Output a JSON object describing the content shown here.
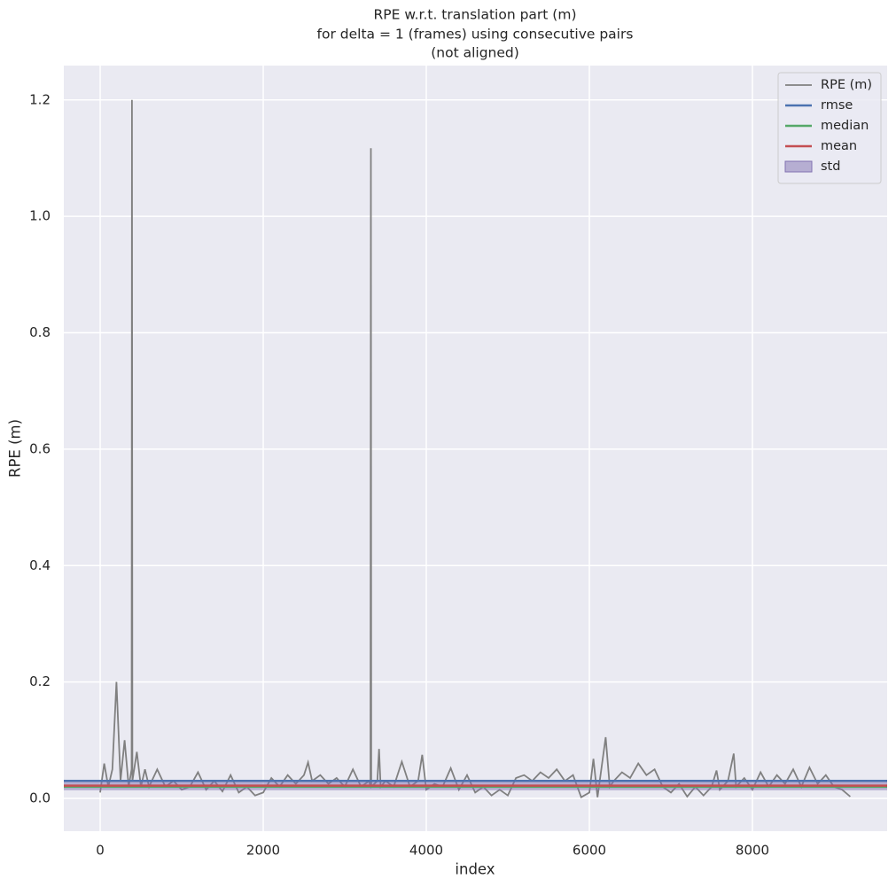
{
  "chart_data": {
    "type": "line",
    "title": [
      "RPE w.r.t. translation part (m)",
      "for delta = 1 (frames) using consecutive pairs",
      "(not aligned)"
    ],
    "x_label": "index",
    "y_label": "RPE (m)",
    "xlim": [
      -446,
      9652
    ],
    "ylim": [
      -0.0563,
      1.259
    ],
    "xticks": [
      0,
      2000,
      4000,
      6000,
      8000
    ],
    "yticks": [
      {
        "value": 0,
        "label": "0.0"
      },
      0.2,
      0.4,
      0.6,
      0.8,
      {
        "value": 1,
        "label": "1.0"
      },
      1.2
    ],
    "grid": true,
    "legend": "upper right",
    "series": [
      {
        "name": "RPE (m)",
        "color": "#808080",
        "x": [
          0,
          50,
          100,
          150,
          200,
          250,
          300,
          350,
          385,
          390,
          395,
          450,
          500,
          550,
          600,
          700,
          800,
          900,
          1000,
          1100,
          1200,
          1300,
          1400,
          1500,
          1600,
          1700,
          1800,
          1900,
          2000,
          2100,
          2200,
          2300,
          2400,
          2500,
          2550,
          2600,
          2700,
          2800,
          2900,
          3000,
          3100,
          3200,
          3300,
          3315,
          3320,
          3325,
          3400,
          3420,
          3440,
          3500,
          3600,
          3700,
          3800,
          3900,
          3950,
          4000,
          4100,
          4200,
          4300,
          4400,
          4500,
          4600,
          4700,
          4800,
          4900,
          5000,
          5100,
          5200,
          5300,
          5400,
          5500,
          5600,
          5700,
          5800,
          5900,
          6000,
          6050,
          6100,
          6200,
          6250,
          6300,
          6400,
          6500,
          6600,
          6700,
          6800,
          6900,
          7000,
          7100,
          7200,
          7300,
          7400,
          7500,
          7560,
          7600,
          7700,
          7770,
          7800,
          7900,
          8000,
          8100,
          8200,
          8300,
          8400,
          8500,
          8600,
          8700,
          8800,
          8900,
          9000,
          9100,
          9200
        ],
        "values": [
          0.01,
          0.06,
          0.02,
          0.05,
          0.2,
          0.03,
          0.1,
          0.02,
          0.05,
          1.2,
          0.03,
          0.08,
          0.02,
          0.05,
          0.02,
          0.05,
          0.02,
          0.03,
          0.015,
          0.02,
          0.045,
          0.015,
          0.03,
          0.012,
          0.04,
          0.01,
          0.02,
          0.005,
          0.01,
          0.035,
          0.02,
          0.04,
          0.025,
          0.04,
          0.062,
          0.03,
          0.04,
          0.025,
          0.035,
          0.02,
          0.05,
          0.02,
          0.03,
          0.02,
          1.117,
          0.02,
          0.03,
          0.085,
          0.02,
          0.03,
          0.02,
          0.063,
          0.02,
          0.03,
          0.075,
          0.015,
          0.025,
          0.02,
          0.052,
          0.015,
          0.04,
          0.01,
          0.02,
          0.005,
          0.015,
          0.005,
          0.035,
          0.04,
          0.03,
          0.045,
          0.035,
          0.05,
          0.03,
          0.04,
          0.002,
          0.01,
          0.068,
          0.002,
          0.105,
          0.02,
          0.03,
          0.045,
          0.035,
          0.06,
          0.04,
          0.05,
          0.02,
          0.01,
          0.025,
          0.003,
          0.02,
          0.005,
          0.02,
          0.048,
          0.015,
          0.03,
          0.077,
          0.02,
          0.035,
          0.015,
          0.045,
          0.02,
          0.04,
          0.025,
          0.05,
          0.02,
          0.053,
          0.025,
          0.04,
          0.02,
          0.015,
          0.003
        ]
      }
    ],
    "reference_lines": [
      {
        "name": "rmse",
        "color": "#4c72b0",
        "value": 0.03
      },
      {
        "name": "median",
        "color": "#55a868",
        "value": 0.02
      },
      {
        "name": "mean",
        "color": "#c44e52",
        "value": 0.022
      }
    ],
    "std_band": {
      "name": "std",
      "color": "#8172b2",
      "value": 0.008
    }
  }
}
